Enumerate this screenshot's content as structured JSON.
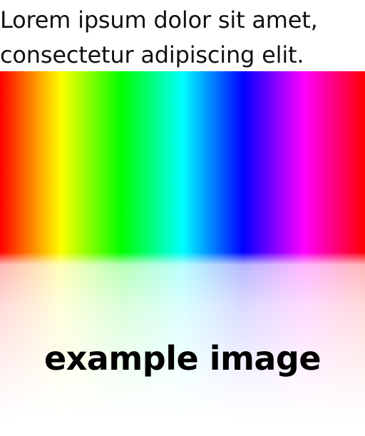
{
  "intro": {
    "text": "Lorem ipsum dolor sit amet,\nconsectetur adipiscing elit."
  },
  "image": {
    "caption": "example image",
    "gradient_colors": [
      "#ff0000",
      "#ffff00",
      "#00ff00",
      "#00ffff",
      "#0000ff",
      "#ff00ff",
      "#ff0000"
    ]
  }
}
